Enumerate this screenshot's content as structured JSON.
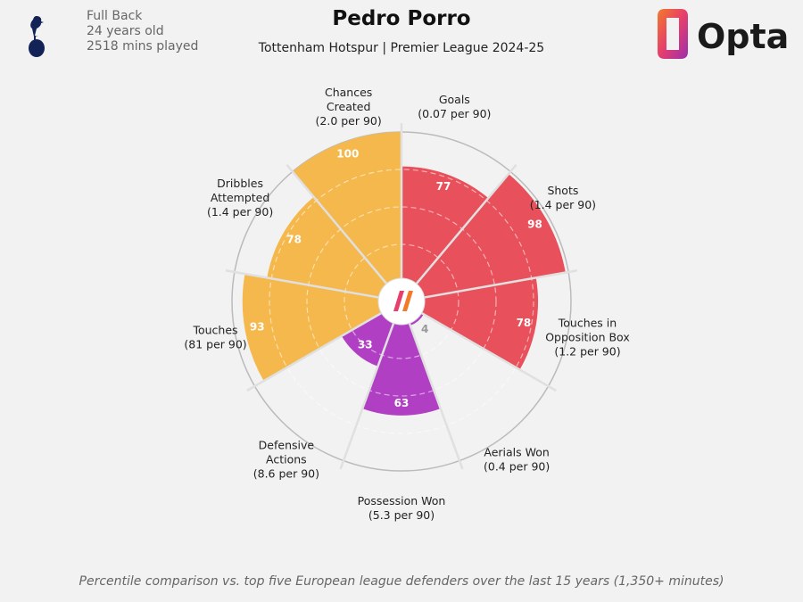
{
  "player": {
    "position": "Full Back",
    "age": "24 years old",
    "minutes": "2518 mins played"
  },
  "title": "Pedro Porro",
  "subtitle": "Tottenham Hotspur | Premier League 2024-25",
  "logo_text": "Opta",
  "footnote": "Percentile comparison vs. top five European league defenders over the last 15 years (1,350+ minutes)",
  "colors": {
    "attacking": "#e8505b",
    "possession": "#f5b84c",
    "defending": "#b03fc4",
    "background": "#f2f2f2"
  },
  "chart_data": {
    "type": "radial-bar",
    "scale": [
      0,
      100
    ],
    "grid": true,
    "categories": [
      {
        "name": "Goals",
        "per90": "(0.07 per 90)",
        "value": 77,
        "group": "attacking"
      },
      {
        "name": "Shots",
        "per90": "(1.4 per 90)",
        "value": 98,
        "group": "attacking"
      },
      {
        "name": "Touches in Opposition Box",
        "per90": "(1.2 per 90)",
        "value": 78,
        "group": "attacking"
      },
      {
        "name": "Aerials Won",
        "per90": "(0.4 per 90)",
        "value": 4,
        "group": "defending"
      },
      {
        "name": "Possession Won",
        "per90": "(5.3 per 90)",
        "value": 63,
        "group": "defending"
      },
      {
        "name": "Defensive Actions",
        "per90": "(8.6 per 90)",
        "value": 33,
        "group": "defending"
      },
      {
        "name": "Touches",
        "per90": "(81 per 90)",
        "value": 93,
        "group": "possession"
      },
      {
        "name": "Dribbles Attempted",
        "per90": "(1.4 per 90)",
        "value": 78,
        "group": "possession"
      },
      {
        "name": "Chances Created",
        "per90": "(2.0 per 90)",
        "value": 100,
        "group": "possession"
      }
    ]
  }
}
